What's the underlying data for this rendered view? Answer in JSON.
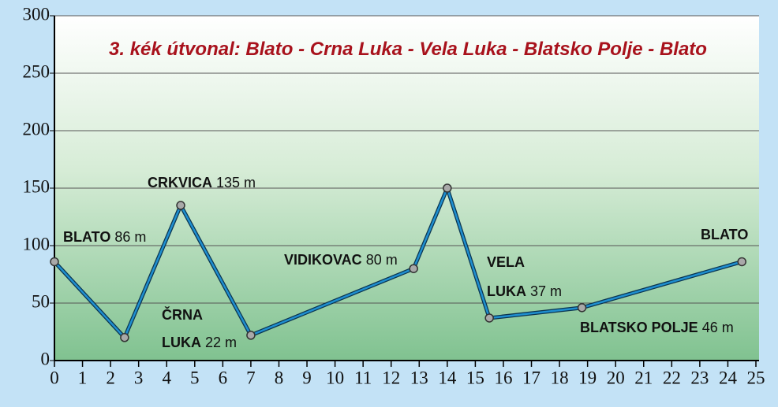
{
  "chart_data": {
    "type": "line",
    "title": "3. kék útvonal: Blato - Crna Luka - Vela Luka - Blatsko Polje - Blato",
    "x": [
      0,
      2.5,
      4.5,
      7,
      12.8,
      14,
      15.5,
      18.8,
      24.5
    ],
    "series": [
      {
        "color": "#1f8fd0",
        "values": [
          86,
          20,
          135,
          22,
          80,
          150,
          37,
          46,
          86
        ],
        "value_labels": [
          "86 m",
          null,
          "135 m",
          "22 m",
          "80 m",
          null,
          "37 m",
          "46 m",
          null
        ],
        "point_names": [
          [
            "BLATO"
          ],
          null,
          [
            "CRKVICA"
          ],
          [
            "ČRNA",
            "LUKA"
          ],
          [
            "VIDIKOVAC"
          ],
          null,
          [
            "VELA",
            "LUKA"
          ],
          [
            "BLATSKO POLJE"
          ],
          [
            "BLATO"
          ]
        ]
      }
    ],
    "xlim": [
      0,
      25
    ],
    "ylim": [
      0,
      300
    ],
    "xticks": [
      0,
      1,
      2,
      3,
      4,
      5,
      6,
      7,
      8,
      9,
      10,
      11,
      12,
      13,
      14,
      15,
      16,
      17,
      18,
      19,
      20,
      21,
      22,
      23,
      24,
      25
    ],
    "yticks": [
      0,
      50,
      100,
      150,
      200,
      250,
      300
    ],
    "grid": true
  }
}
